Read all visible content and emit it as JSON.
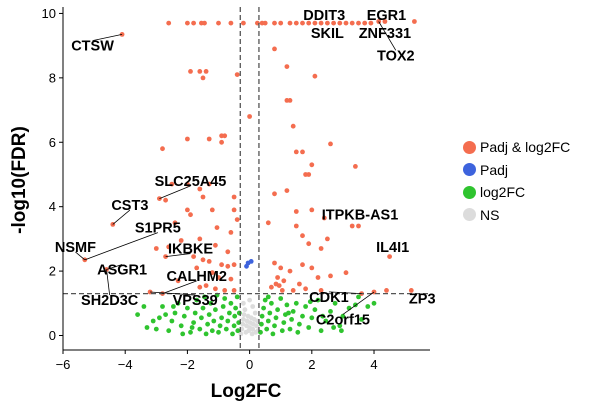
{
  "chart_data": {
    "type": "scatter",
    "title": "",
    "xlabel": "Log2FC",
    "ylabel": "-log10(FDR)",
    "xlim": [
      -6,
      5.8
    ],
    "ylim": [
      -0.45,
      10.2
    ],
    "xticks": [
      -6,
      -4,
      -2,
      0,
      2,
      4
    ],
    "yticks": [
      0,
      2,
      4,
      6,
      8,
      10
    ],
    "xtick_labels": [
      "−6",
      "−4",
      "−2",
      "0",
      "2",
      "4"
    ],
    "ytick_labels": [
      "0",
      "2",
      "4",
      "6",
      "8",
      "10"
    ],
    "thresholds": {
      "log2fc": [
        -0.3,
        0.3
      ],
      "fdr_neglog10": 1.3
    },
    "grid": false,
    "legend_position": "right",
    "series": [
      {
        "name": "Padj & log2FC",
        "color": "#f46d4f",
        "points": [
          [
            -4.1,
            9.35
          ],
          [
            -2.6,
            9.7
          ],
          [
            -2.0,
            9.7
          ],
          [
            -1.8,
            9.7
          ],
          [
            -1.55,
            9.7
          ],
          [
            -1.45,
            9.7
          ],
          [
            -1.0,
            9.7
          ],
          [
            -0.6,
            9.7
          ],
          [
            -0.2,
            9.7
          ],
          [
            0.25,
            9.7
          ],
          [
            0.4,
            9.7
          ],
          [
            0.5,
            9.7
          ],
          [
            0.8,
            9.7
          ],
          [
            1.0,
            9.7
          ],
          [
            1.3,
            9.7
          ],
          [
            1.5,
            9.7
          ],
          [
            1.7,
            9.7
          ],
          [
            1.9,
            9.7
          ],
          [
            2.1,
            9.7
          ],
          [
            2.3,
            9.7
          ],
          [
            2.5,
            9.7
          ],
          [
            2.7,
            9.7
          ],
          [
            2.9,
            9.7
          ],
          [
            3.1,
            9.7
          ],
          [
            3.3,
            9.7
          ],
          [
            3.5,
            9.7
          ],
          [
            3.7,
            9.7
          ],
          [
            3.9,
            9.7
          ],
          [
            4.15,
            9.75
          ],
          [
            4.35,
            9.75
          ],
          [
            5.3,
            9.75
          ],
          [
            -1.4,
            8.2
          ],
          [
            -1.6,
            8.2
          ],
          [
            -1.5,
            8.0
          ],
          [
            -1.9,
            8.2
          ],
          [
            -0.4,
            8.1
          ],
          [
            0.8,
            8.9
          ],
          [
            1.2,
            8.35
          ],
          [
            2.1,
            8.05
          ],
          [
            1.2,
            7.3
          ],
          [
            1.3,
            7.3
          ],
          [
            0.0,
            6.8
          ],
          [
            -0.9,
            6.2
          ],
          [
            -0.8,
            6.2
          ],
          [
            -1.3,
            6.1
          ],
          [
            -0.9,
            6.0
          ],
          [
            -2.0,
            6.1
          ],
          [
            -2.8,
            5.8
          ],
          [
            1.4,
            6.5
          ],
          [
            1.5,
            5.7
          ],
          [
            1.7,
            5.7
          ],
          [
            2.6,
            5.95
          ],
          [
            2.0,
            5.3
          ],
          [
            1.8,
            5.0
          ],
          [
            1.9,
            5.0
          ],
          [
            3.4,
            5.25
          ],
          [
            -1.3,
            4.7
          ],
          [
            -2.0,
            4.7
          ],
          [
            -2.5,
            4.7
          ],
          [
            -1.6,
            4.55
          ],
          [
            -1.5,
            4.3
          ],
          [
            -0.5,
            4.3
          ],
          [
            -2.9,
            4.25
          ],
          [
            -2.7,
            4.2
          ],
          [
            -2.0,
            3.9
          ],
          [
            -1.9,
            3.75
          ],
          [
            -1.2,
            3.9
          ],
          [
            -0.5,
            3.9
          ],
          [
            -2.4,
            3.5
          ],
          [
            -0.4,
            3.6
          ],
          [
            -1.05,
            3.35
          ],
          [
            -0.6,
            3.2
          ],
          [
            -1.6,
            3.0
          ],
          [
            -2.2,
            2.95
          ],
          [
            -2.6,
            2.75
          ],
          [
            -1.1,
            2.8
          ],
          [
            -0.7,
            2.6
          ],
          [
            -1.8,
            2.45
          ],
          [
            -1.5,
            2.35
          ],
          [
            -1.3,
            2.3
          ],
          [
            -1.7,
            2.1
          ],
          [
            -0.9,
            2.2
          ],
          [
            -0.7,
            2.15
          ],
          [
            -0.5,
            2.2
          ],
          [
            -1.2,
            1.95
          ],
          [
            -1.0,
            1.8
          ],
          [
            -0.6,
            1.75
          ],
          [
            -1.4,
            1.55
          ],
          [
            -1.6,
            1.5
          ],
          [
            -1.1,
            1.45
          ],
          [
            -0.8,
            1.4
          ],
          [
            -0.5,
            1.4
          ],
          [
            -4.4,
            3.45
          ],
          [
            -5.3,
            2.35
          ],
          [
            -3.0,
            2.7
          ],
          [
            -2.7,
            2.45
          ],
          [
            -4.6,
            2.05
          ],
          [
            -2.3,
            1.7
          ],
          [
            -3.2,
            1.35
          ],
          [
            -2.8,
            1.3
          ],
          [
            0.8,
            4.4
          ],
          [
            1.2,
            4.5
          ],
          [
            0.6,
            3.5
          ],
          [
            1.5,
            3.85
          ],
          [
            2.0,
            3.9
          ],
          [
            2.4,
            3.65
          ],
          [
            1.5,
            3.4
          ],
          [
            1.7,
            3.1
          ],
          [
            1.9,
            2.85
          ],
          [
            2.5,
            3.0
          ],
          [
            2.3,
            2.7
          ],
          [
            3.3,
            3.4
          ],
          [
            3.5,
            3.4
          ],
          [
            0.8,
            2.25
          ],
          [
            1.0,
            2.1
          ],
          [
            1.3,
            2.0
          ],
          [
            1.7,
            2.2
          ],
          [
            2.0,
            2.1
          ],
          [
            2.2,
            1.8
          ],
          [
            2.6,
            1.85
          ],
          [
            3.1,
            1.95
          ],
          [
            0.9,
            1.8
          ],
          [
            1.1,
            1.7
          ],
          [
            1.6,
            1.6
          ],
          [
            0.7,
            1.5
          ],
          [
            0.85,
            1.6
          ],
          [
            0.95,
            1.55
          ],
          [
            1.4,
            1.4
          ],
          [
            1.8,
            1.45
          ],
          [
            2.3,
            1.4
          ],
          [
            1.05,
            1.4
          ],
          [
            4.0,
            1.35
          ],
          [
            4.4,
            1.4
          ],
          [
            4.5,
            2.45
          ],
          [
            5.2,
            1.4
          ],
          [
            3.6,
            1.3
          ]
        ]
      },
      {
        "name": "Padj",
        "color": "#3d63dd",
        "points": [
          [
            -0.05,
            2.25
          ],
          [
            -0.1,
            2.15
          ],
          [
            0.05,
            2.3
          ]
        ]
      },
      {
        "name": "log2FC",
        "color": "#2fc42f",
        "points": [
          [
            -3.6,
            0.65
          ],
          [
            -3.3,
            0.25
          ],
          [
            -3.0,
            0.2
          ],
          [
            -2.9,
            0.55
          ],
          [
            -2.8,
            0.9
          ],
          [
            -2.6,
            0.15
          ],
          [
            -2.5,
            0.45
          ],
          [
            -2.4,
            0.7
          ],
          [
            -2.3,
            1.0
          ],
          [
            -2.2,
            0.3
          ],
          [
            -2.1,
            0.6
          ],
          [
            -2.0,
            0.85
          ],
          [
            -1.9,
            0.1
          ],
          [
            -1.8,
            0.4
          ],
          [
            -1.75,
            0.7
          ],
          [
            -1.7,
            1.1
          ],
          [
            -1.6,
            0.2
          ],
          [
            -1.55,
            0.55
          ],
          [
            -1.5,
            0.85
          ],
          [
            -1.4,
            0.05
          ],
          [
            -1.35,
            0.35
          ],
          [
            -1.3,
            0.65
          ],
          [
            -1.25,
            1.0
          ],
          [
            -1.2,
            0.15
          ],
          [
            -1.15,
            0.45
          ],
          [
            -1.1,
            0.8
          ],
          [
            -1.0,
            0.1
          ],
          [
            -0.95,
            0.3
          ],
          [
            -0.9,
            0.55
          ],
          [
            -0.85,
            0.9
          ],
          [
            -0.8,
            1.15
          ],
          [
            -0.75,
            0.2
          ],
          [
            -0.7,
            0.45
          ],
          [
            -0.65,
            0.7
          ],
          [
            -0.6,
            1.0
          ],
          [
            -0.55,
            0.05
          ],
          [
            -0.5,
            0.3
          ],
          [
            -0.48,
            0.6
          ],
          [
            -0.45,
            0.85
          ],
          [
            -0.4,
            1.2
          ],
          [
            -0.38,
            0.15
          ],
          [
            -0.35,
            0.4
          ],
          [
            -0.33,
            0.7
          ],
          [
            -1.05,
            1.25
          ],
          [
            -1.45,
            1.2
          ],
          [
            -1.85,
            0.25
          ],
          [
            -2.15,
            0.05
          ],
          [
            -2.45,
            0.9
          ],
          [
            -2.7,
            0.65
          ],
          [
            -3.1,
            0.45
          ],
          [
            -3.4,
            0.9
          ],
          [
            0.35,
            0.1
          ],
          [
            0.38,
            0.35
          ],
          [
            0.4,
            0.6
          ],
          [
            0.45,
            0.85
          ],
          [
            0.5,
            1.1
          ],
          [
            0.55,
            0.2
          ],
          [
            0.6,
            0.45
          ],
          [
            0.65,
            0.7
          ],
          [
            0.7,
            1.0
          ],
          [
            0.75,
            0.05
          ],
          [
            0.8,
            0.3
          ],
          [
            0.85,
            0.55
          ],
          [
            0.9,
            0.8
          ],
          [
            1.0,
            1.15
          ],
          [
            1.05,
            0.15
          ],
          [
            1.1,
            0.4
          ],
          [
            1.15,
            0.65
          ],
          [
            1.2,
            0.95
          ],
          [
            1.3,
            0.2
          ],
          [
            1.35,
            0.5
          ],
          [
            1.4,
            0.75
          ],
          [
            1.5,
            1.0
          ],
          [
            1.55,
            0.1
          ],
          [
            1.6,
            0.35
          ],
          [
            1.7,
            0.6
          ],
          [
            1.8,
            0.9
          ],
          [
            1.9,
            0.25
          ],
          [
            2.0,
            0.55
          ],
          [
            2.1,
            0.8
          ],
          [
            2.2,
            1.1
          ],
          [
            2.3,
            0.15
          ],
          [
            2.45,
            0.45
          ],
          [
            2.6,
            0.75
          ],
          [
            2.75,
            1.0
          ],
          [
            2.9,
            0.3
          ],
          [
            3.0,
            0.6
          ],
          [
            3.2,
            0.85
          ],
          [
            3.4,
            0.95
          ],
          [
            3.6,
            0.5
          ],
          [
            3.8,
            0.9
          ],
          [
            4.0,
            1.0
          ],
          [
            3.5,
            1.2
          ],
          [
            2.7,
            0.25
          ],
          [
            2.35,
            0.6
          ],
          [
            1.25,
            0.7
          ],
          [
            0.6,
            1.2
          ],
          [
            2.95,
            0.15
          ],
          [
            1.95,
            1.05
          ]
        ]
      },
      {
        "name": "NS",
        "color": "#dcdcdc",
        "points": [
          [
            -0.28,
            0.05
          ],
          [
            -0.25,
            0.2
          ],
          [
            -0.22,
            0.35
          ],
          [
            -0.2,
            0.5
          ],
          [
            -0.18,
            0.65
          ],
          [
            -0.15,
            0.8
          ],
          [
            -0.12,
            0.1
          ],
          [
            -0.1,
            0.3
          ],
          [
            -0.08,
            0.45
          ],
          [
            -0.05,
            0.6
          ],
          [
            -0.03,
            0.15
          ],
          [
            0.0,
            0.25
          ],
          [
            0.02,
            0.4
          ],
          [
            0.05,
            0.55
          ],
          [
            0.08,
            0.05
          ],
          [
            0.1,
            0.2
          ],
          [
            0.12,
            0.35
          ],
          [
            0.15,
            0.5
          ],
          [
            0.18,
            0.7
          ],
          [
            0.2,
            0.1
          ],
          [
            0.22,
            0.3
          ],
          [
            0.25,
            0.45
          ],
          [
            0.27,
            0.15
          ],
          [
            -0.2,
            1.0
          ],
          [
            0.1,
            0.9
          ],
          [
            0.0,
            1.1
          ]
        ]
      }
    ],
    "labels": [
      {
        "text": "CTSW",
        "x": -5.05,
        "y": 9.0,
        "px": -4.1,
        "py": 9.35
      },
      {
        "text": "DDIT3",
        "x": 2.4,
        "y": 9.95,
        "px": 2.4,
        "py": 9.7
      },
      {
        "text": "EGR1",
        "x": 4.4,
        "y": 9.95,
        "px": 4.35,
        "py": 9.75
      },
      {
        "text": "SKIL",
        "x": 2.5,
        "y": 9.4,
        "px": 2.5,
        "py": 9.7
      },
      {
        "text": "ZNF331",
        "x": 4.35,
        "y": 9.4,
        "px": 4.15,
        "py": 9.75
      },
      {
        "text": "TOX2",
        "x": 4.7,
        "y": 8.7,
        "px": 4.15,
        "py": 9.75
      },
      {
        "text": "SLC25A45",
        "x": -1.9,
        "y": 4.8,
        "px": -2.9,
        "py": 4.25
      },
      {
        "text": "CST3",
        "x": -3.85,
        "y": 4.05,
        "px": -4.4,
        "py": 3.45
      },
      {
        "text": "S1PR5",
        "x": -2.95,
        "y": 3.35,
        "px": -5.3,
        "py": 2.35
      },
      {
        "text": "NSMF",
        "x": -5.6,
        "y": 2.75,
        "px": -5.3,
        "py": 2.35
      },
      {
        "text": "IKBKE",
        "x": -1.9,
        "y": 2.7,
        "px": -2.7,
        "py": 2.45
      },
      {
        "text": "ASGR1",
        "x": -4.1,
        "y": 2.05,
        "px": -4.6,
        "py": 2.05
      },
      {
        "text": "CALHM2",
        "x": -1.7,
        "y": 1.85,
        "px": -2.8,
        "py": 1.3
      },
      {
        "text": "SH2D3C",
        "x": -4.5,
        "y": 1.1,
        "px": -4.6,
        "py": 2.05
      },
      {
        "text": "VPS39",
        "x": -1.75,
        "y": 1.1,
        "px": -3.2,
        "py": 1.35
      },
      {
        "text": "ITPKB-AS1",
        "x": 3.55,
        "y": 3.75,
        "px": 3.4,
        "py": 3.4
      },
      {
        "text": "IL4I1",
        "x": 4.6,
        "y": 2.75,
        "px": 4.5,
        "py": 2.45
      },
      {
        "text": "CDK1",
        "x": 2.55,
        "y": 1.2,
        "px": 3.6,
        "py": 1.3
      },
      {
        "text": "ZP3",
        "x": 5.55,
        "y": 1.15,
        "px": 5.2,
        "py": 1.4
      },
      {
        "text": "C2orf15",
        "x": 3.0,
        "y": 0.5,
        "px": 4.0,
        "py": 1.35
      }
    ]
  }
}
